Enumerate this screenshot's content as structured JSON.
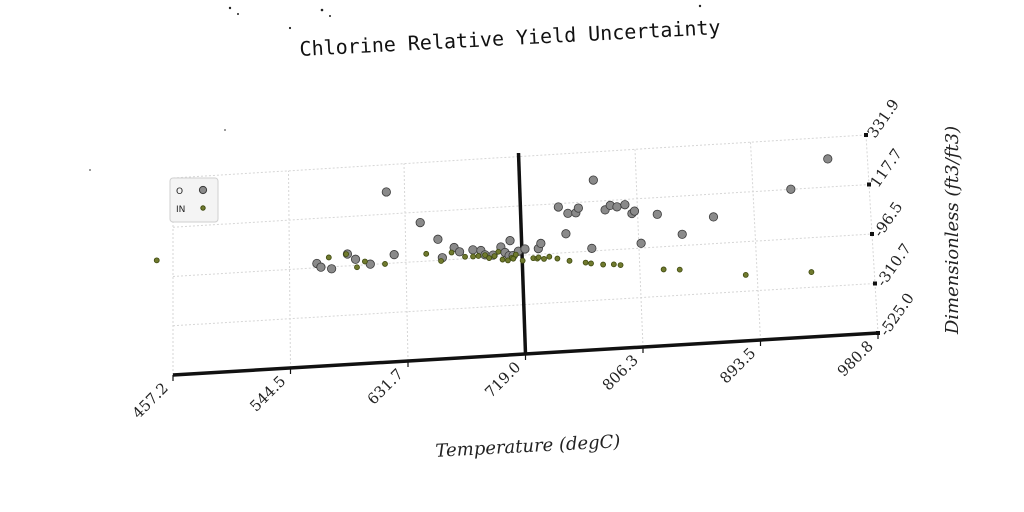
{
  "chart_data": {
    "type": "scatter",
    "title": "Chlorine Relative Yield Uncertainty",
    "xlabel": "Temperature (degC)",
    "ylabel": "Dimensionless (ft3/ft3)",
    "x_ticks": [
      "457.2",
      "544.5",
      "631.7",
      "719.0",
      "806.3",
      "893.5",
      "980.8"
    ],
    "y_ticks": [
      "-525.0",
      "-310.7",
      "-96.5",
      "117.7",
      "331.9"
    ],
    "xlim": [
      457.2,
      980.8
    ],
    "ylim": [
      -525.0,
      331.9
    ],
    "grid": true,
    "legend_position": "top-left",
    "series": [
      {
        "name": "O",
        "color": "#8a8a8a",
        "edge": "#3a3a3a",
        "points": [
          [
            565,
            -78
          ],
          [
            568,
            -95
          ],
          [
            576,
            -105
          ],
          [
            588,
            -45
          ],
          [
            594,
            -70
          ],
          [
            605,
            -95
          ],
          [
            618,
            214
          ],
          [
            623,
            -60
          ],
          [
            643,
            72
          ],
          [
            656,
            -5
          ],
          [
            659,
            -86
          ],
          [
            668,
            -45
          ],
          [
            672,
            -65
          ],
          [
            682,
            -60
          ],
          [
            688,
            -65
          ],
          [
            691,
            -85
          ],
          [
            697,
            -88
          ],
          [
            703,
            -55
          ],
          [
            706,
            -80
          ],
          [
            709,
            -95
          ],
          [
            710,
            -30
          ],
          [
            712,
            -95
          ],
          [
            716,
            -78
          ],
          [
            721,
            -70
          ],
          [
            731,
            -72
          ],
          [
            733,
            -50
          ],
          [
            747,
            103
          ],
          [
            752,
            -15
          ],
          [
            754,
            73
          ],
          [
            760,
            73
          ],
          [
            762,
            93
          ],
          [
            771,
            -85
          ],
          [
            774,
            210
          ],
          [
            782,
            78
          ],
          [
            786,
            96
          ],
          [
            791,
            88
          ],
          [
            797,
            95
          ],
          [
            802,
            55
          ],
          [
            804,
            65
          ],
          [
            808,
            -76
          ],
          [
            821,
            45
          ],
          [
            839,
            -48
          ],
          [
            863,
            19
          ],
          [
            922,
            118
          ],
          [
            951,
            239
          ]
        ]
      },
      {
        "name": "IN",
        "color": "#707a2e",
        "edge": "#3f4a10",
        "points": [
          [
            445,
            -22
          ],
          [
            574,
            -55
          ],
          [
            587,
            -45
          ],
          [
            595,
            -105
          ],
          [
            601,
            -82
          ],
          [
            616,
            -98
          ],
          [
            647,
            -65
          ],
          [
            658,
            -100
          ],
          [
            666,
            -66
          ],
          [
            676,
            -88
          ],
          [
            682,
            -89
          ],
          [
            686,
            -88
          ],
          [
            691,
            -86
          ],
          [
            694,
            -100
          ],
          [
            698,
            -93
          ],
          [
            701,
            -75
          ],
          [
            704,
            -110
          ],
          [
            708,
            -115
          ],
          [
            711,
            -105
          ],
          [
            712,
            -109
          ],
          [
            714,
            -92
          ],
          [
            719,
            -120
          ],
          [
            727,
            -112
          ],
          [
            730,
            -115
          ],
          [
            731,
            -110
          ],
          [
            735,
            -118
          ],
          [
            739,
            -110
          ],
          [
            745,
            -120
          ],
          [
            754,
            -133
          ],
          [
            766,
            -145
          ],
          [
            770,
            -150
          ],
          [
            779,
            -158
          ],
          [
            787,
            -160
          ],
          [
            792,
            -165
          ],
          [
            824,
            -195
          ],
          [
            836,
            -200
          ],
          [
            885,
            -240
          ],
          [
            934,
            -245
          ]
        ]
      }
    ]
  }
}
